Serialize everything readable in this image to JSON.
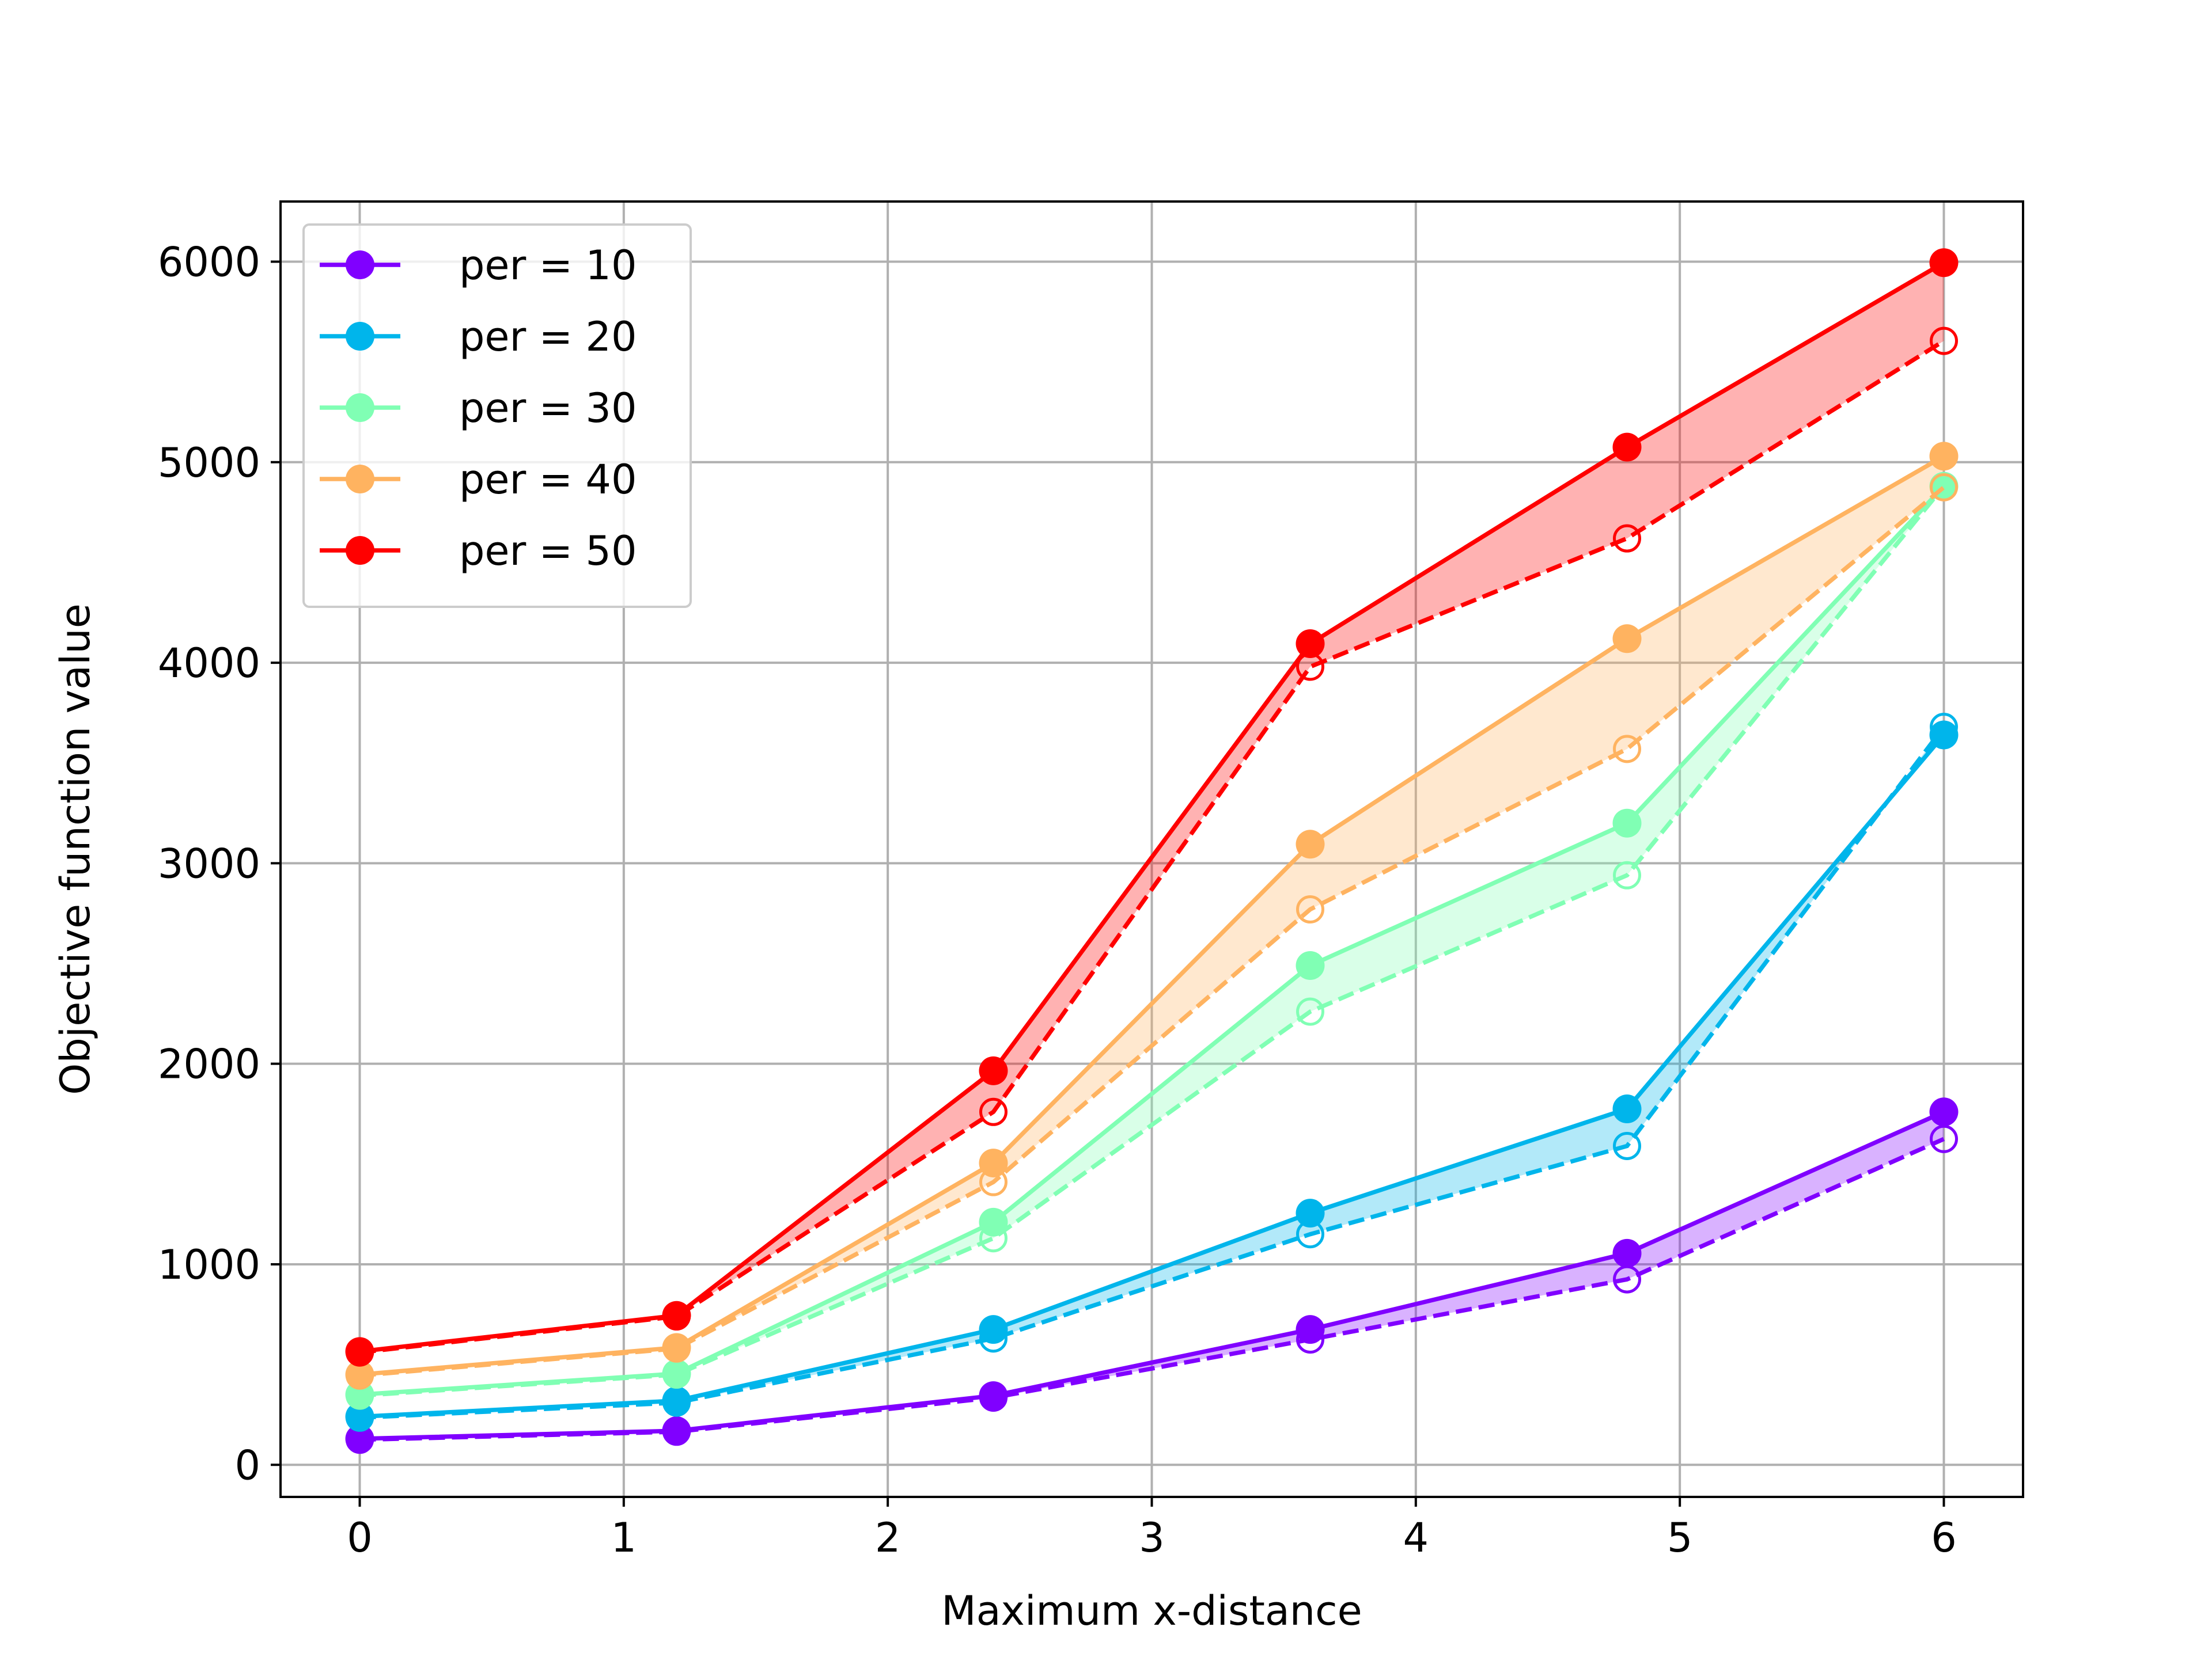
{
  "chart_data": {
    "type": "line",
    "title": "",
    "xlabel": "Maximum x-distance",
    "ylabel": "Objective function value",
    "xlim": [
      -0.3,
      6.3
    ],
    "ylim": [
      -160,
      6300
    ],
    "xticks": [
      0,
      1,
      2,
      3,
      4,
      5,
      6
    ],
    "xtick_labels": [
      "0",
      "1",
      "2",
      "3",
      "4",
      "5",
      "6"
    ],
    "yticks": [
      0,
      1000,
      2000,
      3000,
      4000,
      5000,
      6000
    ],
    "ytick_labels": [
      "0",
      "1000",
      "2000",
      "3000",
      "4000",
      "5000",
      "6000"
    ],
    "grid": true,
    "legend_position": "top-left",
    "x": [
      0,
      1.2,
      2.4,
      3.6,
      4.8,
      6.0
    ],
    "series": [
      {
        "name": "per = 10",
        "color": "#8000ff",
        "values": [
          130,
          170,
          345,
          675,
          1055,
          1760
        ],
        "dashed_values": [
          125,
          165,
          335,
          625,
          925,
          1625
        ]
      },
      {
        "name": "per = 20",
        "color": "#00b5eb",
        "values": [
          240,
          320,
          675,
          1255,
          1775,
          3640
        ],
        "dashed_values": [
          235,
          310,
          630,
          1150,
          1590,
          3680
        ]
      },
      {
        "name": "per = 30",
        "color": "#80ffb4",
        "values": [
          350,
          455,
          1210,
          2490,
          3200,
          4880
        ],
        "dashed_values": [
          345,
          450,
          1130,
          2260,
          2940,
          4880
        ]
      },
      {
        "name": "per = 40",
        "color": "#ffb360",
        "values": [
          450,
          585,
          1505,
          3095,
          4120,
          5030
        ],
        "dashed_values": [
          445,
          580,
          1410,
          2770,
          3570,
          4875
        ]
      },
      {
        "name": "per = 50",
        "color": "#ff0000",
        "values": [
          565,
          745,
          1965,
          4095,
          5075,
          5995
        ],
        "dashed_values": [
          560,
          740,
          1760,
          3980,
          4620,
          5605
        ]
      }
    ]
  }
}
